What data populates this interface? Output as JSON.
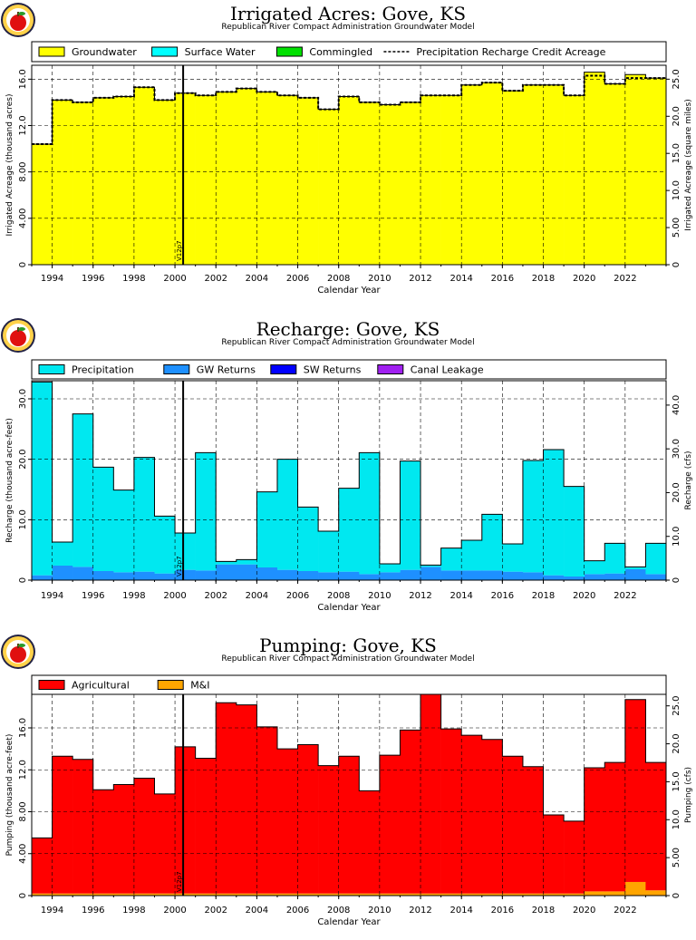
{
  "colors": {
    "groundwater": "#ffff00",
    "surface_water": "#00ffff",
    "commingled": "#00e000",
    "precipitation": "#00e8f0",
    "gw_returns": "#1e90ff",
    "sw_returns": "#0000ff",
    "canal_leakage": "#a020f0",
    "agricultural": "#ff0000",
    "mi": "#ffa500",
    "logo_ring": "#222244",
    "logo_apple": "#e01010"
  },
  "logo_icon": "apple-seal-icon",
  "chart_data": [
    {
      "type": "area",
      "title": "Irrigated Acres: Gove, KS",
      "subtitle": "Republican River Compact Administration Groundwater Model",
      "xlabel": "Calendar Year",
      "ylabel": "Irrigated Acreage (thousand acres)",
      "ylabel_right": "Irrigated Acreage (square miles)",
      "xlim": [
        1993,
        2024
      ],
      "ylim": [
        0,
        17.2
      ],
      "yticks": [
        0,
        4,
        8,
        12,
        16
      ],
      "ytick_labels": [
        "0",
        "4.00",
        "8.00",
        "12.0",
        "16.0"
      ],
      "yticks_right": [
        0,
        5,
        10,
        15,
        20,
        25
      ],
      "ytick_labels_right": [
        "0",
        "5.00",
        "10.0",
        "15.0",
        "20.0",
        "25.0"
      ],
      "right_scale": 1.5625,
      "xticks": [
        1994,
        1996,
        1998,
        2000,
        2002,
        2004,
        2006,
        2008,
        2010,
        2012,
        2014,
        2016,
        2018,
        2020,
        2022
      ],
      "grid": true,
      "legend": [
        "Groundwater",
        "Surface Water",
        "Commingled",
        "Precipitation Recharge Credit Acreage"
      ],
      "marker": {
        "x": 2000.4,
        "label": "V12p7"
      },
      "years": [
        1993,
        1994,
        1995,
        1996,
        1997,
        1998,
        1999,
        2000,
        2001,
        2002,
        2003,
        2004,
        2005,
        2006,
        2007,
        2008,
        2009,
        2010,
        2011,
        2012,
        2013,
        2014,
        2015,
        2016,
        2017,
        2018,
        2019,
        2020,
        2021,
        2022,
        2023
      ],
      "series": [
        {
          "name": "Groundwater",
          "values": [
            10.4,
            14.2,
            14.0,
            14.4,
            14.5,
            15.3,
            14.2,
            14.8,
            14.6,
            14.9,
            15.2,
            14.9,
            14.6,
            14.4,
            13.4,
            14.5,
            14.0,
            13.8,
            14.0,
            14.6,
            14.6,
            15.5,
            15.7,
            15.0,
            15.5,
            15.5,
            14.6,
            16.6,
            15.6,
            16.4,
            16.1
          ]
        },
        {
          "name": "Surface Water",
          "values": [
            0,
            0,
            0,
            0,
            0,
            0,
            0,
            0,
            0,
            0,
            0,
            0,
            0,
            0,
            0,
            0,
            0,
            0,
            0,
            0,
            0,
            0,
            0,
            0,
            0,
            0,
            0,
            0,
            0,
            0,
            0
          ]
        },
        {
          "name": "Commingled",
          "values": [
            0,
            0,
            0,
            0,
            0,
            0,
            0,
            0,
            0,
            0,
            0,
            0,
            0,
            0,
            0,
            0,
            0,
            0,
            0,
            0,
            0,
            0,
            0,
            0,
            0,
            0,
            0,
            0,
            0,
            0,
            0
          ]
        },
        {
          "name": "Precipitation Recharge Credit Acreage",
          "line": true,
          "values": [
            10.4,
            14.2,
            14.0,
            14.4,
            14.5,
            15.3,
            14.2,
            14.8,
            14.6,
            14.9,
            15.2,
            14.9,
            14.6,
            14.4,
            13.4,
            14.5,
            14.0,
            13.8,
            14.0,
            14.6,
            14.6,
            15.5,
            15.7,
            15.0,
            15.5,
            15.5,
            14.6,
            16.3,
            15.6,
            16.1,
            16.1
          ]
        }
      ]
    },
    {
      "type": "area",
      "title": "Recharge: Gove, KS",
      "subtitle": "Republican River Compact Administration Groundwater Model",
      "xlabel": "Calendar Year",
      "ylabel": "Recharge (thousand acre-feet)",
      "ylabel_right": "Recharge (cfs)",
      "xlim": [
        1993,
        2024
      ],
      "ylim": [
        0,
        33
      ],
      "yticks": [
        0,
        10,
        20,
        30
      ],
      "ytick_labels": [
        "0",
        "10.0",
        "20.0",
        "30.0"
      ],
      "yticks_right": [
        0,
        10,
        20,
        30,
        40
      ],
      "ytick_labels_right": [
        "0",
        "10.0",
        "20.0",
        "30.0",
        "40.0"
      ],
      "right_scale": 1.381,
      "xticks": [
        1994,
        1996,
        1998,
        2000,
        2002,
        2004,
        2006,
        2008,
        2010,
        2012,
        2014,
        2016,
        2018,
        2020,
        2022
      ],
      "grid": true,
      "legend": [
        "Precipitation",
        "GW Returns",
        "SW Returns",
        "Canal Leakage"
      ],
      "marker": {
        "x": 2000.4,
        "label": "V12p7"
      },
      "years": [
        1993,
        1994,
        1995,
        1996,
        1997,
        1998,
        1999,
        2000,
        2001,
        2002,
        2003,
        2004,
        2005,
        2006,
        2007,
        2008,
        2009,
        2010,
        2011,
        2012,
        2013,
        2014,
        2015,
        2016,
        2017,
        2018,
        2019,
        2020,
        2021,
        2022,
        2023
      ],
      "series": [
        {
          "name": "GW Returns",
          "values": [
            0.8,
            2.4,
            2.2,
            1.5,
            1.3,
            1.4,
            1.1,
            1.7,
            1.6,
            2.6,
            2.6,
            2.1,
            1.7,
            1.5,
            1.3,
            1.4,
            1.0,
            1.3,
            1.7,
            2.2,
            1.6,
            1.6,
            1.6,
            1.4,
            1.3,
            0.8,
            0.6,
            1.0,
            1.1,
            1.8,
            1.0
          ]
        },
        {
          "name": "Precipitation",
          "values": [
            32.0,
            3.9,
            25.3,
            17.2,
            13.6,
            18.9,
            9.5,
            6.1,
            19.5,
            0.5,
            0.8,
            12.5,
            18.3,
            10.6,
            6.8,
            13.8,
            20.1,
            1.4,
            18.0,
            0.3,
            3.7,
            5.0,
            9.3,
            4.6,
            18.5,
            20.8,
            14.9,
            2.2,
            5.0,
            0.4,
            5.1
          ]
        },
        {
          "name": "SW Returns",
          "values": [
            0,
            0,
            0,
            0,
            0,
            0,
            0,
            0,
            0,
            0,
            0,
            0,
            0,
            0,
            0,
            0,
            0,
            0,
            0,
            0,
            0,
            0,
            0,
            0,
            0,
            0,
            0,
            0,
            0,
            0,
            0
          ]
        },
        {
          "name": "Canal Leakage",
          "values": [
            0,
            0,
            0,
            0,
            0,
            0,
            0,
            0,
            0,
            0,
            0,
            0,
            0,
            0,
            0,
            0,
            0,
            0,
            0,
            0,
            0,
            0,
            0,
            0,
            0,
            0,
            0,
            0,
            0,
            0,
            0
          ]
        }
      ]
    },
    {
      "type": "area",
      "title": "Pumping: Gove, KS",
      "subtitle": "Republican River Compact Administration Groundwater Model",
      "xlabel": "Calendar Year",
      "ylabel": "Pumping (thousand acre-feet)",
      "ylabel_right": "Pumping (cfs)",
      "xlim": [
        1993,
        2024
      ],
      "ylim": [
        0,
        19.2
      ],
      "yticks": [
        0,
        4,
        8,
        12,
        16
      ],
      "ytick_labels": [
        "0",
        "4.00",
        "8.00",
        "12.0",
        "16.0"
      ],
      "yticks_right": [
        0,
        5,
        10,
        15,
        20,
        25
      ],
      "ytick_labels_right": [
        "0",
        "5.00",
        "10.0",
        "15.0",
        "20.0",
        "25.0"
      ],
      "right_scale": 1.381,
      "xticks": [
        1994,
        1996,
        1998,
        2000,
        2002,
        2004,
        2006,
        2008,
        2010,
        2012,
        2014,
        2016,
        2018,
        2020,
        2022
      ],
      "grid": true,
      "legend": [
        "Agricultural",
        "M&I"
      ],
      "marker": {
        "x": 2000.4,
        "label": "V12p7"
      },
      "years": [
        1993,
        1994,
        1995,
        1996,
        1997,
        1998,
        1999,
        2000,
        2001,
        2002,
        2003,
        2004,
        2005,
        2006,
        2007,
        2008,
        2009,
        2010,
        2011,
        2012,
        2013,
        2014,
        2015,
        2016,
        2017,
        2018,
        2019,
        2020,
        2021,
        2022,
        2023
      ],
      "series": [
        {
          "name": "M&I",
          "values": [
            0.2,
            0.2,
            0.2,
            0.2,
            0.2,
            0.2,
            0.2,
            0.2,
            0.2,
            0.2,
            0.2,
            0.2,
            0.2,
            0.2,
            0.2,
            0.2,
            0.2,
            0.2,
            0.2,
            0.2,
            0.2,
            0.2,
            0.2,
            0.2,
            0.2,
            0.2,
            0.2,
            0.4,
            0.4,
            1.3,
            0.5
          ]
        },
        {
          "name": "Agricultural",
          "values": [
            5.3,
            13.1,
            12.8,
            9.9,
            10.4,
            11.0,
            9.5,
            14.0,
            12.9,
            18.2,
            18.0,
            15.9,
            13.8,
            14.2,
            12.2,
            13.1,
            9.8,
            13.2,
            15.6,
            19.0,
            15.7,
            15.1,
            14.7,
            13.1,
            12.1,
            7.5,
            6.9,
            11.8,
            12.3,
            17.4,
            12.2
          ]
        }
      ]
    }
  ]
}
